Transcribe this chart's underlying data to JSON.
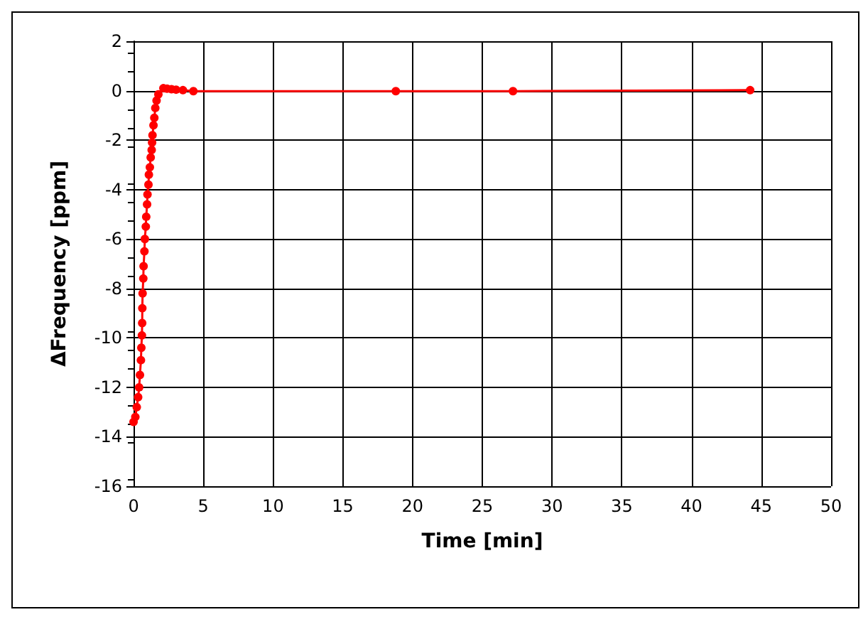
{
  "chart_data": {
    "type": "line",
    "xlabel": "Time [min]",
    "ylabel": "ΔFrequency [ppm]",
    "xlim": [
      0,
      50
    ],
    "xticks": [
      0,
      5,
      10,
      15,
      20,
      25,
      30,
      35,
      40,
      45,
      50
    ],
    "ylim": [
      -16,
      2
    ],
    "yticks": [
      -16,
      -14,
      -12,
      -10,
      -8,
      -6,
      -4,
      -2,
      0,
      2
    ],
    "grid": true,
    "marker": "circle",
    "line_style": "solid",
    "series": [
      {
        "color": "#ff0000",
        "x": [
          0,
          0.13,
          0.23,
          0.33,
          0.4,
          0.46,
          0.53,
          0.56,
          0.6,
          0.62,
          0.63,
          0.65,
          0.7,
          0.72,
          0.78,
          0.81,
          0.88,
          0.91,
          0.97,
          1.0,
          1.07,
          1.1,
          1.17,
          1.23,
          1.3,
          1.33,
          1.36,
          1.43,
          1.49,
          1.56,
          1.65,
          1.78,
          2.14,
          2.4,
          2.72,
          3.05,
          3.54,
          4.29,
          18.8,
          27.2,
          44.2
        ],
        "values": [
          -13.4,
          -13.2,
          -12.8,
          -12.4,
          -12.0,
          -11.5,
          -10.9,
          -10.4,
          -9.9,
          -9.4,
          -8.8,
          -8.2,
          -7.6,
          -7.1,
          -6.5,
          -6.0,
          -5.5,
          -5.1,
          -4.6,
          -4.2,
          -3.8,
          -3.4,
          -3.1,
          -2.7,
          -2.4,
          -2.1,
          -1.8,
          -1.4,
          -1.1,
          -0.7,
          -0.4,
          -0.15,
          0.1,
          0.08,
          0.06,
          0.04,
          0.02,
          -0.02,
          -0.02,
          -0.02,
          0.02
        ]
      }
    ]
  }
}
